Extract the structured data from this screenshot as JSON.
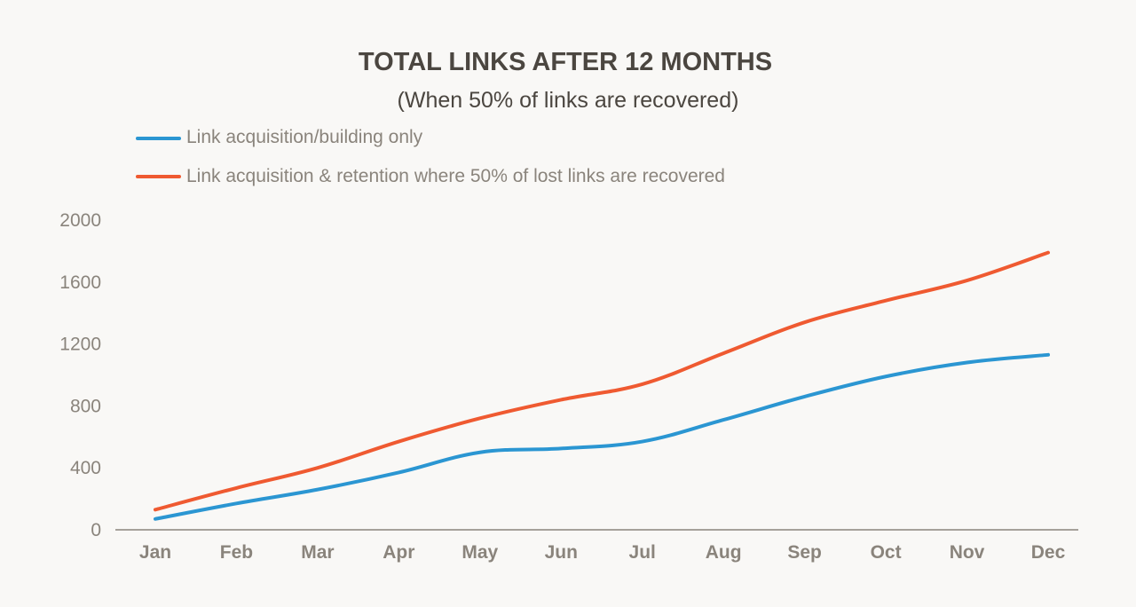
{
  "chart_data": {
    "type": "line",
    "title": "TOTAL LINKS AFTER 12 MONTHS",
    "subtitle": "(When 50% of links are recovered)",
    "xlabel": "",
    "ylabel": "",
    "categories": [
      "Jan",
      "Feb",
      "Mar",
      "Apr",
      "May",
      "Jun",
      "Jul",
      "Aug",
      "Sep",
      "Oct",
      "Nov",
      "Dec"
    ],
    "ylim": [
      0,
      2000
    ],
    "yticks": [
      "0",
      "400",
      "800",
      "1200",
      "1600",
      "2000"
    ],
    "grid": false,
    "legend_position": "top-left",
    "series": [
      {
        "name": "Link acquisition/building only",
        "color": "#2b96d2",
        "values": [
          70,
          170,
          260,
          370,
          500,
          525,
          570,
          710,
          860,
          990,
          1080,
          1130
        ]
      },
      {
        "name": "Link acquisition & retention where 50% of lost links are recovered",
        "color": "#ef5a31",
        "values": [
          130,
          270,
          400,
          570,
          720,
          840,
          940,
          1140,
          1340,
          1480,
          1610,
          1790
        ]
      }
    ]
  }
}
